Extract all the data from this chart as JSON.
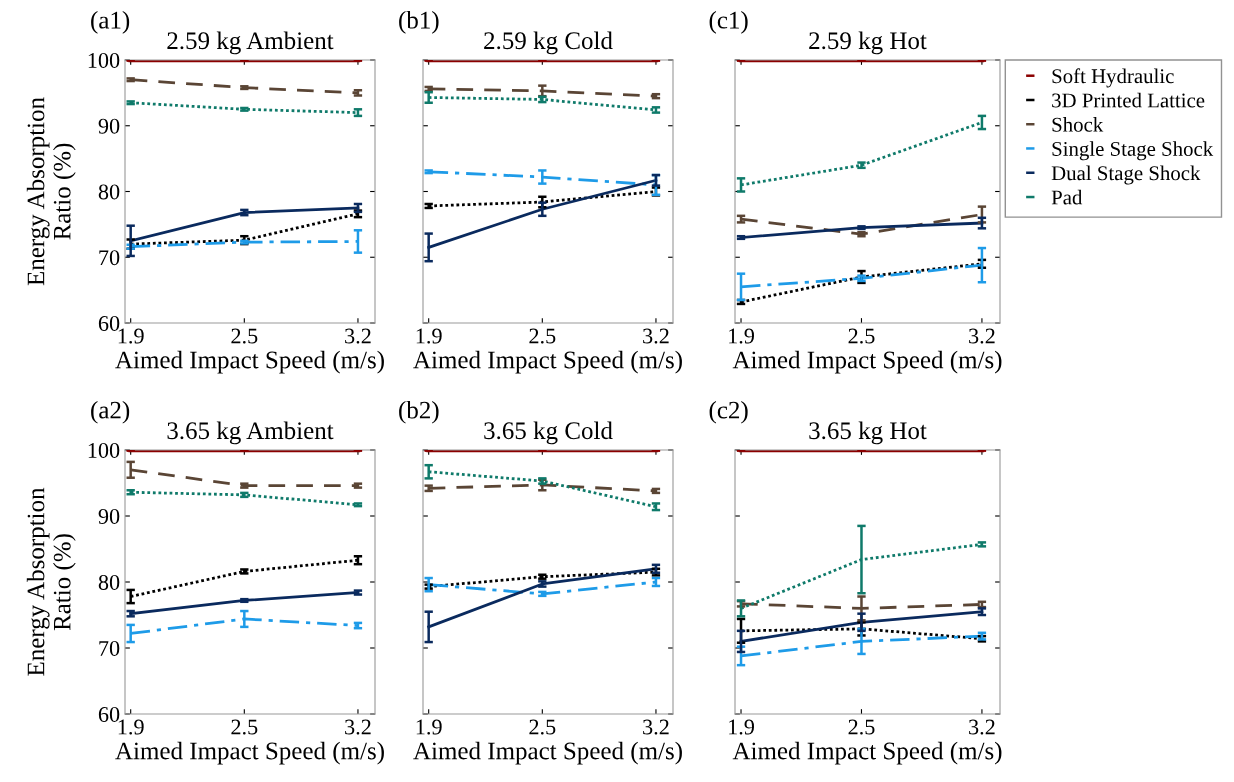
{
  "chart_data": [
    {
      "type": "line",
      "title": "2.59 kg Ambient",
      "xlabel": "Aimed Impact Speed (m/s)",
      "ylabel": "Energy Absorption\nRatio (%)",
      "annotations": [
        "(a1)"
      ],
      "categories": [
        "1.9",
        "2.5",
        "3.2"
      ],
      "ylim": [
        60,
        100
      ],
      "yticks": [
        60,
        70,
        80,
        90,
        100
      ],
      "grid": false,
      "legend": false,
      "series": [
        {
          "color": "#8b0000",
          "line_style": "solid",
          "values": [
            100,
            100,
            100
          ],
          "errors": [
            0.1,
            0.1,
            0.1
          ]
        },
        {
          "color": "#000000",
          "line_style": "dotted",
          "values": [
            72,
            72.6,
            76.6
          ],
          "errors": [
            0.7,
            0.6,
            0.5
          ]
        },
        {
          "color": "#5a4535",
          "line_style": "dashed",
          "values": [
            97,
            95.8,
            95
          ],
          "errors": [
            0.2,
            0.2,
            0.4
          ]
        },
        {
          "color": "#1e9be8",
          "line_style": "dashdot",
          "values": [
            71.6,
            72.3,
            72.4
          ],
          "errors": [
            0.3,
            0.2,
            1.7
          ]
        },
        {
          "color": "#0a2a5e",
          "line_style": "solid",
          "values": [
            72.5,
            76.8,
            77.5
          ],
          "errors": [
            2.3,
            0.4,
            0.6
          ]
        },
        {
          "color": "#0f7a6a",
          "line_style": "dotted",
          "values": [
            93.5,
            92.5,
            92
          ],
          "errors": [
            0.2,
            0.2,
            0.5
          ]
        }
      ]
    },
    {
      "type": "line",
      "title": "2.59 kg Cold",
      "xlabel": "Aimed Impact Speed (m/s)",
      "annotations": [
        "(b1)"
      ],
      "categories": [
        "1.9",
        "2.5",
        "3.2"
      ],
      "ylim": [
        60,
        100
      ],
      "yticks": [
        60,
        70,
        80,
        90,
        100
      ],
      "tick_labels": "x",
      "grid": false,
      "legend": false,
      "series": [
        {
          "color": "#8b0000",
          "line_style": "solid",
          "values": [
            100,
            100,
            100
          ],
          "errors": [
            0.1,
            0.1,
            0.1
          ]
        },
        {
          "color": "#000000",
          "line_style": "dotted",
          "values": [
            77.8,
            78.4,
            80
          ],
          "errors": [
            0.3,
            0.8,
            0.6
          ]
        },
        {
          "color": "#5a4535",
          "line_style": "dashed",
          "values": [
            95.6,
            95.3,
            94.5
          ],
          "errors": [
            0.3,
            0.8,
            0.3
          ]
        },
        {
          "color": "#1e9be8",
          "line_style": "dashdot",
          "values": [
            83,
            82.2,
            81
          ],
          "errors": [
            0.2,
            1.0,
            1.5
          ]
        },
        {
          "color": "#0a2a5e",
          "line_style": "solid",
          "values": [
            71.5,
            77.3,
            81.7
          ],
          "errors": [
            2.1,
            1.0,
            0.8
          ]
        },
        {
          "color": "#0f7a6a",
          "line_style": "dotted",
          "values": [
            94.3,
            94,
            92.4
          ],
          "errors": [
            0.8,
            0.4,
            0.4
          ]
        }
      ]
    },
    {
      "type": "line",
      "title": "2.59 kg Hot",
      "xlabel": "Aimed Impact Speed (m/s)",
      "annotations": [
        "(c1)"
      ],
      "categories": [
        "1.9",
        "2.5",
        "3.2"
      ],
      "ylim": [
        60,
        100
      ],
      "yticks": [
        60,
        70,
        80,
        90,
        100
      ],
      "tick_labels": "x",
      "grid": false,
      "legend": "right",
      "series": [
        {
          "name": "Soft Hydraulic",
          "color": "#8b0000",
          "line_style": "solid",
          "values": [
            100,
            100,
            100
          ],
          "errors": [
            0.1,
            0.1,
            0.1
          ]
        },
        {
          "name": "3D Printed Lattice",
          "color": "#000000",
          "line_style": "dotted",
          "values": [
            63.2,
            67,
            69
          ],
          "errors": [
            0.3,
            0.9,
            0.6
          ]
        },
        {
          "name": "Shock",
          "color": "#5a4535",
          "line_style": "dashed",
          "values": [
            75.8,
            73.5,
            76.5
          ],
          "errors": [
            0.5,
            0.3,
            1.2
          ]
        },
        {
          "name": "Single Stage Shock",
          "color": "#1e9be8",
          "line_style": "dashdot",
          "values": [
            65.5,
            66.8,
            68.8
          ],
          "errors": [
            2.0,
            0.4,
            2.6
          ]
        },
        {
          "name": "Dual Stage Shock",
          "color": "#0a2a5e",
          "line_style": "solid",
          "values": [
            73,
            74.5,
            75.2
          ],
          "errors": [
            0.2,
            0.2,
            0.8
          ]
        },
        {
          "name": "Pad",
          "color": "#0f7a6a",
          "line_style": "dotted",
          "values": [
            81,
            84,
            90.5
          ],
          "errors": [
            1.0,
            0.4,
            1.0
          ]
        }
      ]
    },
    {
      "type": "line",
      "title": "3.65 kg Ambient",
      "xlabel": "Aimed Impact Speed (m/s)",
      "ylabel": "Energy Absorption\nRatio (%)",
      "annotations": [
        "(a2)"
      ],
      "categories": [
        "1.9",
        "2.5",
        "3.2"
      ],
      "ylim": [
        60,
        100
      ],
      "yticks": [
        60,
        70,
        80,
        90,
        100
      ],
      "grid": false,
      "legend": false,
      "series": [
        {
          "color": "#8b0000",
          "line_style": "solid",
          "values": [
            100,
            100,
            100
          ],
          "errors": [
            0.1,
            0.1,
            0.1
          ]
        },
        {
          "color": "#000000",
          "line_style": "dotted",
          "values": [
            77.8,
            81.6,
            83.3
          ],
          "errors": [
            1.0,
            0.3,
            0.6
          ]
        },
        {
          "color": "#5a4535",
          "line_style": "dashed",
          "values": [
            97,
            94.6,
            94.6
          ],
          "errors": [
            1.2,
            0.3,
            0.3
          ]
        },
        {
          "color": "#1e9be8",
          "line_style": "dashdot",
          "values": [
            72.2,
            74.4,
            73.4
          ],
          "errors": [
            1.3,
            1.2,
            0.4
          ]
        },
        {
          "color": "#0a2a5e",
          "line_style": "solid",
          "values": [
            75.2,
            77.2,
            78.4
          ],
          "errors": [
            0.4,
            0.2,
            0.3
          ]
        },
        {
          "color": "#0f7a6a",
          "line_style": "dotted",
          "values": [
            93.6,
            93.2,
            91.7
          ],
          "errors": [
            0.3,
            0.3,
            0.2
          ]
        }
      ]
    },
    {
      "type": "line",
      "title": "3.65 kg Cold",
      "xlabel": "Aimed Impact Speed (m/s)",
      "annotations": [
        "(b2)"
      ],
      "categories": [
        "1.9",
        "2.5",
        "3.2"
      ],
      "ylim": [
        60,
        100
      ],
      "yticks": [
        60,
        70,
        80,
        90,
        100
      ],
      "tick_labels": "x",
      "grid": false,
      "legend": false,
      "series": [
        {
          "color": "#8b0000",
          "line_style": "solid",
          "values": [
            100,
            100,
            100
          ],
          "errors": [
            0.1,
            0.1,
            0.1
          ]
        },
        {
          "color": "#000000",
          "line_style": "dotted",
          "values": [
            79.3,
            80.8,
            81.5
          ],
          "errors": [
            0.3,
            0.3,
            0.5
          ]
        },
        {
          "color": "#5a4535",
          "line_style": "dashed",
          "values": [
            94.2,
            94.7,
            93.8
          ],
          "errors": [
            0.4,
            0.8,
            0.3
          ]
        },
        {
          "color": "#1e9be8",
          "line_style": "dashdot",
          "values": [
            79.6,
            78.2,
            80
          ],
          "errors": [
            1.0,
            0.3,
            0.6
          ]
        },
        {
          "color": "#0a2a5e",
          "line_style": "solid",
          "values": [
            73.2,
            79.7,
            82
          ],
          "errors": [
            2.3,
            0.4,
            0.6
          ]
        },
        {
          "color": "#0f7a6a",
          "line_style": "dotted",
          "values": [
            96.7,
            95.3,
            91.4
          ],
          "errors": [
            1.0,
            0.4,
            0.5
          ]
        }
      ]
    },
    {
      "type": "line",
      "title": "3.65 kg Hot",
      "xlabel": "Aimed Impact Speed (m/s)",
      "annotations": [
        "(c2)"
      ],
      "categories": [
        "1.9",
        "2.5",
        "3.2"
      ],
      "ylim": [
        60,
        100
      ],
      "yticks": [
        60,
        70,
        80,
        90,
        100
      ],
      "tick_labels": "x",
      "grid": false,
      "legend": false,
      "series": [
        {
          "color": "#8b0000",
          "line_style": "solid",
          "values": [
            100,
            100,
            100
          ],
          "errors": [
            0.1,
            0.1,
            0.1
          ]
        },
        {
          "color": "#000000",
          "line_style": "dotted",
          "values": [
            72.6,
            72.9,
            71.4
          ],
          "errors": [
            1.8,
            1.0,
            0.4
          ]
        },
        {
          "color": "#5a4535",
          "line_style": "dashed",
          "values": [
            76.7,
            76,
            76.6
          ],
          "errors": [
            0.4,
            1.8,
            0.4
          ]
        },
        {
          "color": "#1e9be8",
          "line_style": "dashdot",
          "values": [
            68.8,
            71,
            71.8
          ],
          "errors": [
            1.4,
            1.9,
            0.5
          ]
        },
        {
          "color": "#0a2a5e",
          "line_style": "solid",
          "values": [
            71,
            73.9,
            75.5
          ],
          "errors": [
            1.6,
            1.3,
            0.5
          ]
        },
        {
          "color": "#0f7a6a",
          "line_style": "dotted",
          "values": [
            76,
            83.4,
            85.7
          ],
          "errors": [
            1.2,
            5.1,
            0.3
          ]
        }
      ]
    }
  ]
}
